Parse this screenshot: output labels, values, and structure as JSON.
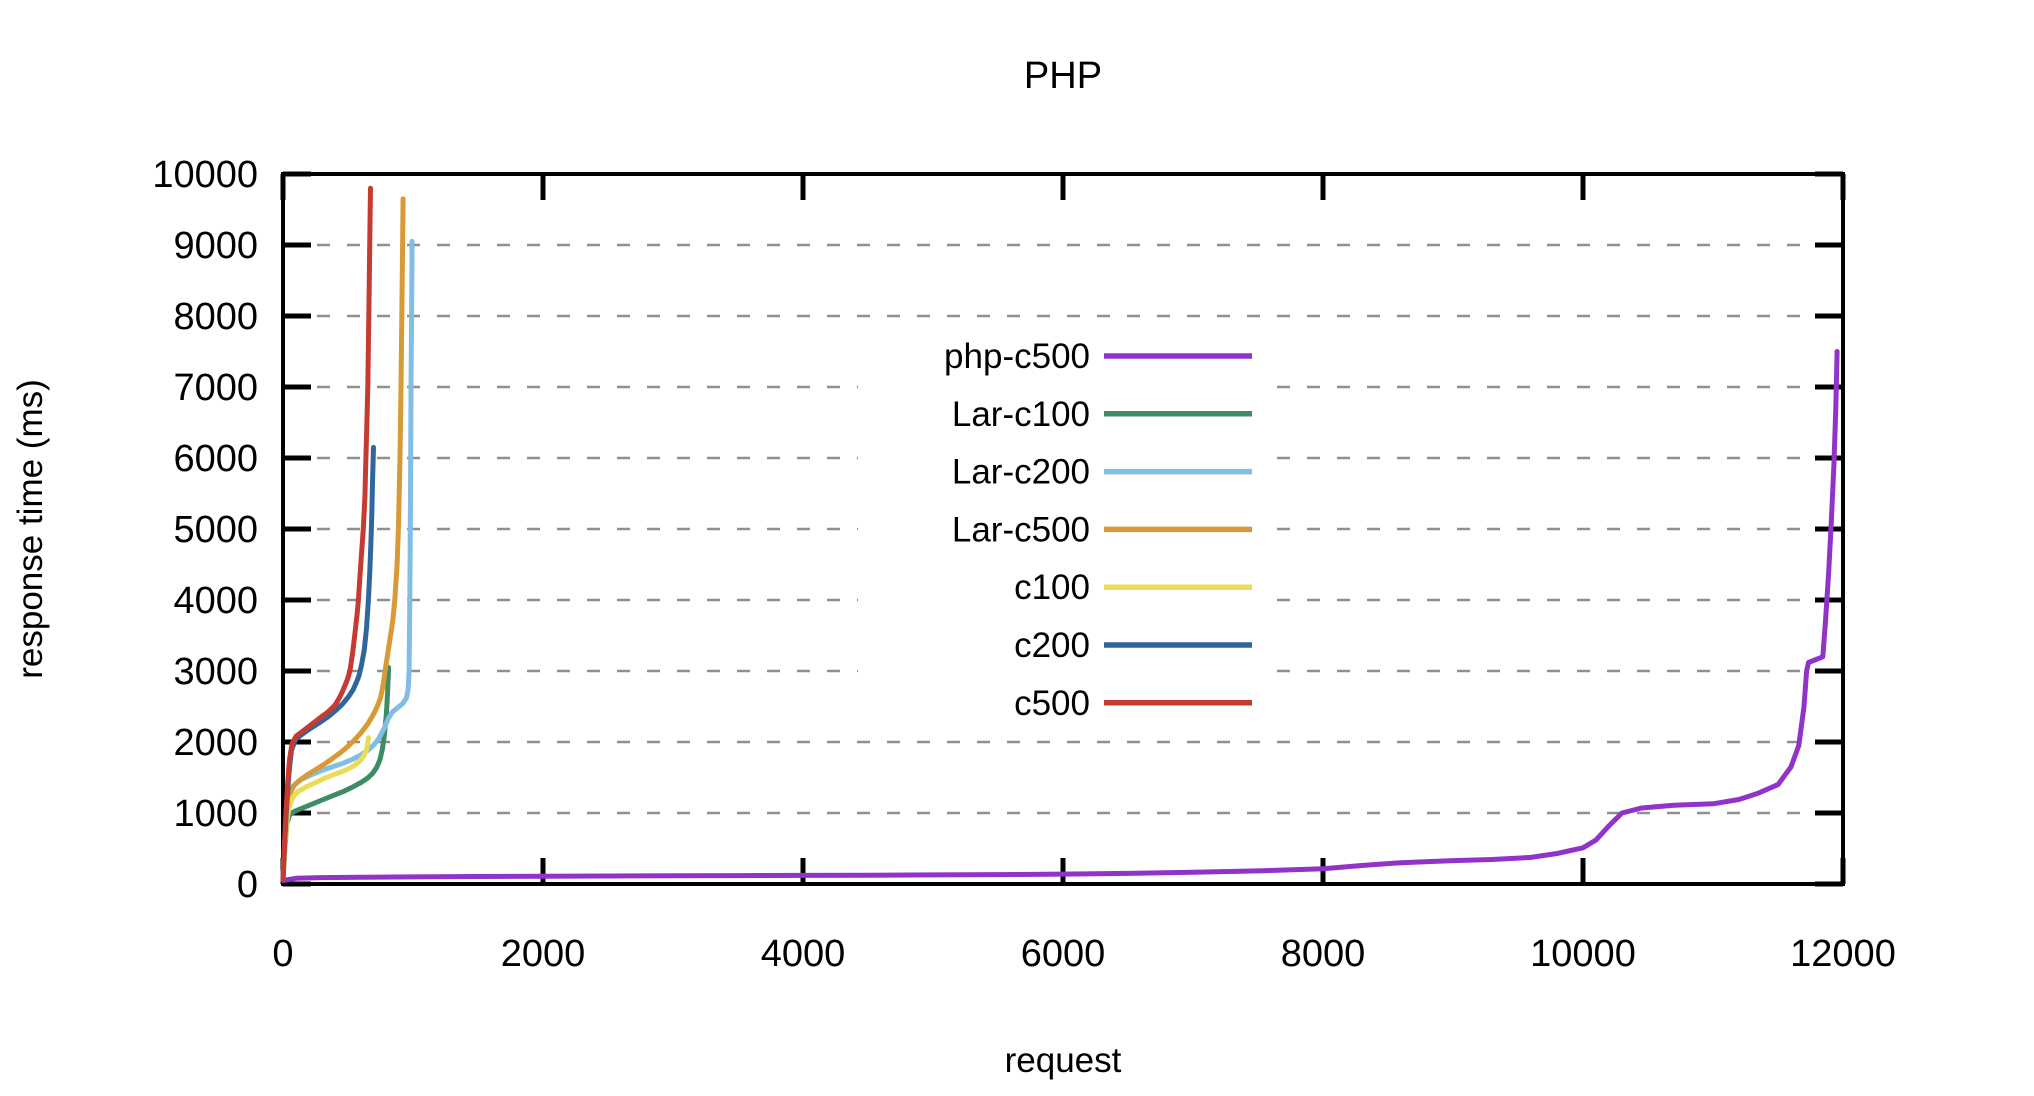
{
  "chart_data": {
    "type": "line",
    "title": "PHP",
    "xlabel": "request",
    "ylabel": "response time (ms)",
    "xlim": [
      0,
      12000
    ],
    "ylim": [
      0,
      10000
    ],
    "x_ticks": [
      0,
      2000,
      4000,
      6000,
      8000,
      10000,
      12000
    ],
    "y_ticks": [
      0,
      1000,
      2000,
      3000,
      4000,
      5000,
      6000,
      7000,
      8000,
      9000,
      10000
    ],
    "grid": "horizontal-dashed",
    "grid_color": "#8f8f8f",
    "axis_color": "#000000",
    "legend_position": "inside-center",
    "legend": [
      "php-c500",
      "Lar-c100",
      "Lar-c200",
      "Lar-c500",
      "c100",
      "c200",
      "c500"
    ],
    "series": [
      {
        "name": "php-c500",
        "color": "#9132c8",
        "points": [
          [
            0,
            50
          ],
          [
            100,
            80
          ],
          [
            300,
            90
          ],
          [
            600,
            95
          ],
          [
            1000,
            100
          ],
          [
            1500,
            105
          ],
          [
            2000,
            110
          ],
          [
            2500,
            112
          ],
          [
            3000,
            115
          ],
          [
            3500,
            118
          ],
          [
            4000,
            121
          ],
          [
            4500,
            124
          ],
          [
            5000,
            128
          ],
          [
            5500,
            133
          ],
          [
            6000,
            140
          ],
          [
            6500,
            150
          ],
          [
            7000,
            165
          ],
          [
            7500,
            185
          ],
          [
            8000,
            215
          ],
          [
            8300,
            260
          ],
          [
            8600,
            300
          ],
          [
            9000,
            330
          ],
          [
            9300,
            345
          ],
          [
            9600,
            375
          ],
          [
            9800,
            430
          ],
          [
            10000,
            510
          ],
          [
            10100,
            620
          ],
          [
            10200,
            820
          ],
          [
            10300,
            1000
          ],
          [
            10450,
            1070
          ],
          [
            10700,
            1110
          ],
          [
            11000,
            1130
          ],
          [
            11200,
            1190
          ],
          [
            11350,
            1280
          ],
          [
            11500,
            1400
          ],
          [
            11600,
            1650
          ],
          [
            11660,
            1950
          ],
          [
            11700,
            2500
          ],
          [
            11720,
            3000
          ],
          [
            11735,
            3120
          ],
          [
            11845,
            3200
          ],
          [
            11865,
            3700
          ],
          [
            11890,
            4400
          ],
          [
            11910,
            5100
          ],
          [
            11930,
            5900
          ],
          [
            11945,
            6700
          ],
          [
            11955,
            7500
          ]
        ]
      },
      {
        "name": "Lar-c100",
        "color": "#3d8c66",
        "points": [
          [
            0,
            55
          ],
          [
            15,
            500
          ],
          [
            30,
            850
          ],
          [
            50,
            970
          ],
          [
            85,
            1020
          ],
          [
            150,
            1070
          ],
          [
            230,
            1130
          ],
          [
            310,
            1190
          ],
          [
            390,
            1250
          ],
          [
            460,
            1300
          ],
          [
            530,
            1360
          ],
          [
            600,
            1430
          ],
          [
            650,
            1490
          ],
          [
            690,
            1560
          ],
          [
            720,
            1640
          ],
          [
            745,
            1750
          ],
          [
            765,
            1900
          ],
          [
            780,
            2100
          ],
          [
            795,
            2400
          ],
          [
            805,
            2700
          ],
          [
            812,
            3050
          ]
        ]
      },
      {
        "name": "Lar-c200",
        "color": "#82bde6",
        "points": [
          [
            0,
            70
          ],
          [
            15,
            650
          ],
          [
            30,
            1050
          ],
          [
            55,
            1300
          ],
          [
            90,
            1400
          ],
          [
            140,
            1470
          ],
          [
            220,
            1540
          ],
          [
            300,
            1600
          ],
          [
            380,
            1650
          ],
          [
            460,
            1700
          ],
          [
            540,
            1760
          ],
          [
            600,
            1820
          ],
          [
            650,
            1880
          ],
          [
            700,
            1960
          ],
          [
            740,
            2060
          ],
          [
            780,
            2200
          ],
          [
            810,
            2330
          ],
          [
            840,
            2420
          ],
          [
            880,
            2480
          ],
          [
            920,
            2540
          ],
          [
            950,
            2620
          ],
          [
            963,
            2750
          ],
          [
            970,
            3000
          ],
          [
            975,
            4000
          ],
          [
            979,
            5000
          ],
          [
            982,
            6000
          ],
          [
            985,
            7000
          ],
          [
            989,
            8000
          ],
          [
            993,
            9050
          ]
        ]
      },
      {
        "name": "Lar-c500",
        "color": "#d79a36",
        "points": [
          [
            0,
            80
          ],
          [
            15,
            600
          ],
          [
            30,
            1000
          ],
          [
            50,
            1250
          ],
          [
            80,
            1380
          ],
          [
            120,
            1450
          ],
          [
            180,
            1530
          ],
          [
            250,
            1610
          ],
          [
            320,
            1690
          ],
          [
            390,
            1780
          ],
          [
            450,
            1860
          ],
          [
            500,
            1940
          ],
          [
            550,
            2030
          ],
          [
            600,
            2130
          ],
          [
            650,
            2250
          ],
          [
            690,
            2370
          ],
          [
            720,
            2480
          ],
          [
            750,
            2620
          ],
          [
            770,
            2800
          ],
          [
            785,
            3000
          ],
          [
            815,
            3350
          ],
          [
            845,
            3720
          ],
          [
            860,
            4000
          ],
          [
            878,
            4500
          ],
          [
            888,
            5000
          ],
          [
            900,
            6000
          ],
          [
            908,
            7000
          ],
          [
            914,
            8000
          ],
          [
            920,
            9000
          ],
          [
            924,
            9650
          ]
        ]
      },
      {
        "name": "c100",
        "color": "#eadd55",
        "points": [
          [
            0,
            60
          ],
          [
            12,
            450
          ],
          [
            25,
            800
          ],
          [
            45,
            1080
          ],
          [
            75,
            1220
          ],
          [
            115,
            1300
          ],
          [
            180,
            1370
          ],
          [
            250,
            1430
          ],
          [
            320,
            1490
          ],
          [
            390,
            1540
          ],
          [
            450,
            1580
          ],
          [
            500,
            1620
          ],
          [
            550,
            1670
          ],
          [
            590,
            1730
          ],
          [
            620,
            1800
          ],
          [
            640,
            1880
          ],
          [
            652,
            1980
          ],
          [
            658,
            2060
          ]
        ]
      },
      {
        "name": "c200",
        "color": "#2f669e",
        "points": [
          [
            0,
            55
          ],
          [
            12,
            550
          ],
          [
            25,
            1000
          ],
          [
            45,
            1550
          ],
          [
            65,
            1880
          ],
          [
            95,
            2030
          ],
          [
            140,
            2100
          ],
          [
            210,
            2190
          ],
          [
            280,
            2270
          ],
          [
            350,
            2360
          ],
          [
            410,
            2450
          ],
          [
            460,
            2540
          ],
          [
            505,
            2640
          ],
          [
            540,
            2740
          ],
          [
            565,
            2840
          ],
          [
            585,
            2940
          ],
          [
            605,
            3090
          ],
          [
            625,
            3300
          ],
          [
            642,
            3600
          ],
          [
            657,
            4000
          ],
          [
            668,
            4400
          ],
          [
            676,
            4800
          ],
          [
            683,
            5200
          ],
          [
            688,
            5600
          ],
          [
            692,
            5900
          ],
          [
            696,
            6150
          ]
        ]
      },
      {
        "name": "c500",
        "color": "#c63b31",
        "points": [
          [
            0,
            60
          ],
          [
            10,
            500
          ],
          [
            20,
            900
          ],
          [
            35,
            1400
          ],
          [
            50,
            1750
          ],
          [
            70,
            1980
          ],
          [
            100,
            2080
          ],
          [
            150,
            2150
          ],
          [
            200,
            2220
          ],
          [
            250,
            2290
          ],
          [
            300,
            2360
          ],
          [
            350,
            2430
          ],
          [
            400,
            2520
          ],
          [
            430,
            2610
          ],
          [
            455,
            2700
          ],
          [
            475,
            2790
          ],
          [
            495,
            2880
          ],
          [
            515,
            3000
          ],
          [
            535,
            3250
          ],
          [
            555,
            3550
          ],
          [
            570,
            3800
          ],
          [
            580,
            4000
          ],
          [
            600,
            4550
          ],
          [
            618,
            5000
          ],
          [
            630,
            5450
          ],
          [
            638,
            6000
          ],
          [
            645,
            6500
          ],
          [
            652,
            7000
          ],
          [
            658,
            7700
          ],
          [
            663,
            8400
          ],
          [
            668,
            9100
          ],
          [
            673,
            9800
          ]
        ]
      }
    ]
  }
}
